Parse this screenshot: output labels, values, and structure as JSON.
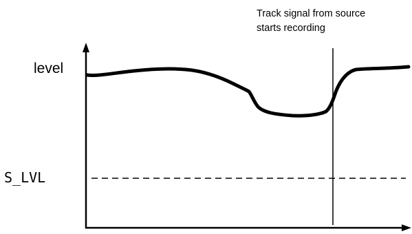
{
  "diagram": {
    "y_axis_label": "level",
    "threshold_label": "S_LVL",
    "annotation_line1": "Track signal from source",
    "annotation_line2": "starts recording"
  },
  "colors": {
    "ink": "#000000",
    "background": "#ffffff"
  }
}
